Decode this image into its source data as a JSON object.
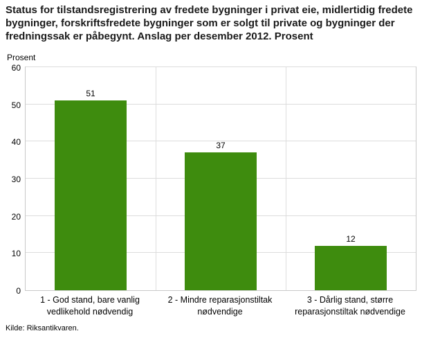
{
  "source": "Kilde: Riksantikvaren.",
  "colors": {
    "bar": "#3e8c0e",
    "grid": "#dcdcdc",
    "plot_border": "#c9c9c9",
    "title_text": "#1a1a1a",
    "text": "#000000"
  },
  "chart_data": {
    "type": "bar",
    "title": "Status for tilstandsregistrering av fredete bygninger i privat eie, midlertidig fredete bygninger, forskriftsfredete bygninger som er solgt til private og bygninger der fredningssak er påbegynt. Anslag per desember 2012. Prosent",
    "categories": [
      "1 - God stand, bare vanlig vedlikehold nødvendig",
      "2 - Mindre reparasjonstiltak nødvendige",
      "3 - Dårlig stand, større reparasjonstiltak nødvendige"
    ],
    "values": [
      51,
      37,
      12
    ],
    "xlabel": "",
    "ylabel": "Prosent",
    "ylim": [
      0,
      60
    ],
    "yticks": [
      0,
      10,
      20,
      30,
      40,
      50,
      60
    ],
    "grid": true,
    "legend_position": "none"
  }
}
